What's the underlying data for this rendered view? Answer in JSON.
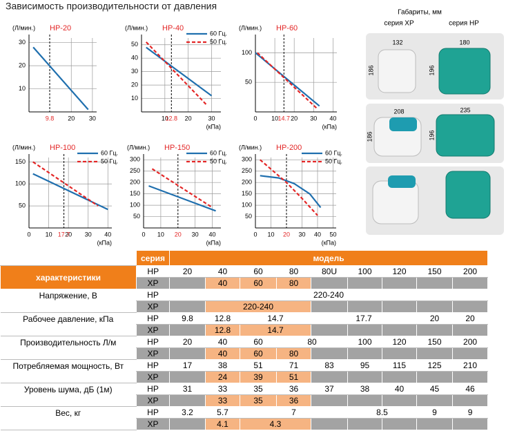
{
  "title": "Зависимость производительности от давления",
  "charts": [
    {
      "type": "line",
      "title": "HP-20",
      "y_label": "(Л/мин.)",
      "xlim": [
        0,
        32
      ],
      "ylim": [
        0,
        32
      ],
      "xticks": [
        20,
        30
      ],
      "yticks": [
        10,
        20,
        30
      ],
      "operating_pressure": 9.8,
      "series": [
        {
          "color": "#1f6fae",
          "style": "solid",
          "x": [
            2,
            28
          ],
          "values": [
            28,
            1
          ]
        }
      ]
    },
    {
      "type": "line",
      "title": "HP-40",
      "y_label": "(Л/мин.)",
      "x_label": "(кПа)",
      "xlim": [
        0,
        34
      ],
      "ylim": [
        0,
        55
      ],
      "xticks": [
        10,
        20,
        30
      ],
      "yticks": [
        10,
        20,
        30,
        40,
        50
      ],
      "operating_pressure": 12.8,
      "series": [
        {
          "name": "60 Гц.",
          "color": "#1f6fae",
          "style": "solid",
          "x": [
            2,
            30
          ],
          "values": [
            48,
            12
          ]
        },
        {
          "name": "50 Гц.",
          "color": "#e32626",
          "style": "dashed",
          "x": [
            2,
            28
          ],
          "values": [
            52,
            5
          ]
        }
      ]
    },
    {
      "type": "line",
      "title": "HP-60",
      "y_label": "(Л/мин.)",
      "x_label": "(кПа)",
      "xlim": [
        0,
        42
      ],
      "ylim": [
        0,
        125
      ],
      "xticks": [
        0,
        10,
        20,
        30,
        40
      ],
      "yticks": [
        50,
        100
      ],
      "operating_pressure": 14.7,
      "series": [
        {
          "color": "#1f6fae",
          "style": "solid",
          "x": [
            0,
            33
          ],
          "values": [
            100,
            10
          ]
        },
        {
          "color": "#e32626",
          "style": "dashed",
          "x": [
            1,
            32
          ],
          "values": [
            100,
            5
          ]
        }
      ]
    },
    {
      "type": "line",
      "title": "HP-100",
      "y_label": "(Л/мин.)",
      "x_label": "(кПа)",
      "xlim": [
        0,
        42
      ],
      "ylim": [
        0,
        160
      ],
      "xticks": [
        0,
        10,
        20,
        30,
        40
      ],
      "yticks": [
        50,
        100,
        150
      ],
      "operating_pressure": 17.7,
      "series": [
        {
          "name": "60 Гц.",
          "color": "#1f6fae",
          "style": "solid",
          "x": [
            2,
            40
          ],
          "values": [
            123,
            42
          ]
        },
        {
          "name": "50 Гц.",
          "color": "#e32626",
          "style": "dashed",
          "x": [
            2,
            35
          ],
          "values": [
            150,
            50
          ]
        }
      ]
    },
    {
      "type": "line",
      "title": "HP-150",
      "y_label": "(Л/мин.)",
      "x_label": "(кПа)",
      "xlim": [
        0,
        45
      ],
      "ylim": [
        0,
        310
      ],
      "xticks": [
        0,
        10,
        30,
        40
      ],
      "yticks": [
        50,
        100,
        150,
        200,
        250,
        300
      ],
      "operating_pressure": 20,
      "series": [
        {
          "name": "60 Гц.",
          "color": "#1f6fae",
          "style": "solid",
          "x": [
            3,
            42
          ],
          "values": [
            185,
            75
          ]
        },
        {
          "name": "50 Гц.",
          "color": "#e32626",
          "style": "dashed",
          "x": [
            5,
            40
          ],
          "values": [
            260,
            90
          ]
        }
      ]
    },
    {
      "type": "line",
      "title": "HP-200",
      "y_label": "(Л/мин.)",
      "x_label": "(кПа)",
      "xlim": [
        0,
        52
      ],
      "ylim": [
        0,
        310
      ],
      "xticks": [
        0,
        10,
        30,
        40,
        50
      ],
      "yticks": [
        50,
        100,
        150,
        200,
        250,
        300
      ],
      "operating_pressure": 20,
      "series": [
        {
          "name": "60 Гц.",
          "color": "#1f6fae",
          "style": "solid",
          "x": [
            3,
            15,
            25,
            35,
            42
          ],
          "values": [
            230,
            220,
            195,
            150,
            90
          ]
        },
        {
          "name": "50 Гц.",
          "color": "#e32626",
          "style": "dashed",
          "x": [
            3,
            20,
            30,
            40
          ],
          "values": [
            300,
            200,
            130,
            55
          ]
        }
      ]
    }
  ],
  "dimensions": {
    "header": "Габариты, мм",
    "xp_label": "серия XP",
    "hp_label": "серия HP",
    "panels": [
      {
        "xp_width": 132,
        "xp_height": 186,
        "hp_width": 180,
        "hp_height": 196
      },
      {
        "xp_width": 208,
        "xp_height": 186,
        "hp_width": 235,
        "hp_height": 196
      }
    ]
  },
  "table": {
    "series_header": "серия",
    "model_header": "модель",
    "characteristics_header": "характеристики",
    "series_labels": [
      "HP",
      "XP"
    ],
    "models": {
      "hp": [
        "20",
        "40",
        "60",
        "80",
        "80U",
        "100",
        "120",
        "150",
        "200"
      ],
      "xp": [
        null,
        "40",
        "60",
        "80",
        null,
        null,
        null,
        null,
        null
      ]
    },
    "rows": [
      {
        "label": "Напряжение, В",
        "hp": [
          {
            "text": "220-240",
            "span": 9
          }
        ],
        "xp": [
          null,
          {
            "text": "220-240",
            "span": 3
          },
          null,
          null,
          null,
          null,
          null
        ]
      },
      {
        "label": "Рабочее давление, кПа",
        "hp": [
          "9.8",
          "12.8",
          {
            "text": "14.7",
            "span": 2
          },
          {
            "text": "17.7",
            "span": 3
          },
          "20",
          "20"
        ],
        "xp": [
          null,
          "12.8",
          {
            "text": "14.7",
            "span": 2
          },
          null,
          null,
          null,
          null,
          null
        ]
      },
      {
        "label": "Производительность Л/м",
        "hp": [
          "20",
          "40",
          "60",
          {
            "text": "80",
            "span": 2
          },
          "100",
          "120",
          "150",
          "200"
        ],
        "xp": [
          null,
          "40",
          "60",
          "80",
          null,
          null,
          null,
          null,
          null
        ]
      },
      {
        "label": "Потребляемая мощность, Вт",
        "hp": [
          "17",
          "38",
          "51",
          "71",
          "83",
          "95",
          "115",
          "125",
          "210"
        ],
        "xp": [
          null,
          "24",
          "39",
          "51",
          null,
          null,
          null,
          null,
          null
        ]
      },
      {
        "label": "Уровень шума, дБ (1м)",
        "hp": [
          "31",
          "33",
          "35",
          "36",
          "37",
          "38",
          "40",
          "45",
          "46"
        ],
        "xp": [
          null,
          "33",
          "35",
          "36",
          null,
          null,
          null,
          null,
          null
        ]
      },
      {
        "label": "Вес, кг",
        "hp": [
          "3.2",
          "5.7",
          {
            "text": "7",
            "span": 3
          },
          {
            "text": "8.5",
            "span": 2
          },
          "9",
          "9"
        ],
        "xp": [
          null,
          "4.1",
          {
            "text": "4.3",
            "span": 2
          },
          null,
          null,
          null,
          null,
          null
        ]
      }
    ]
  }
}
